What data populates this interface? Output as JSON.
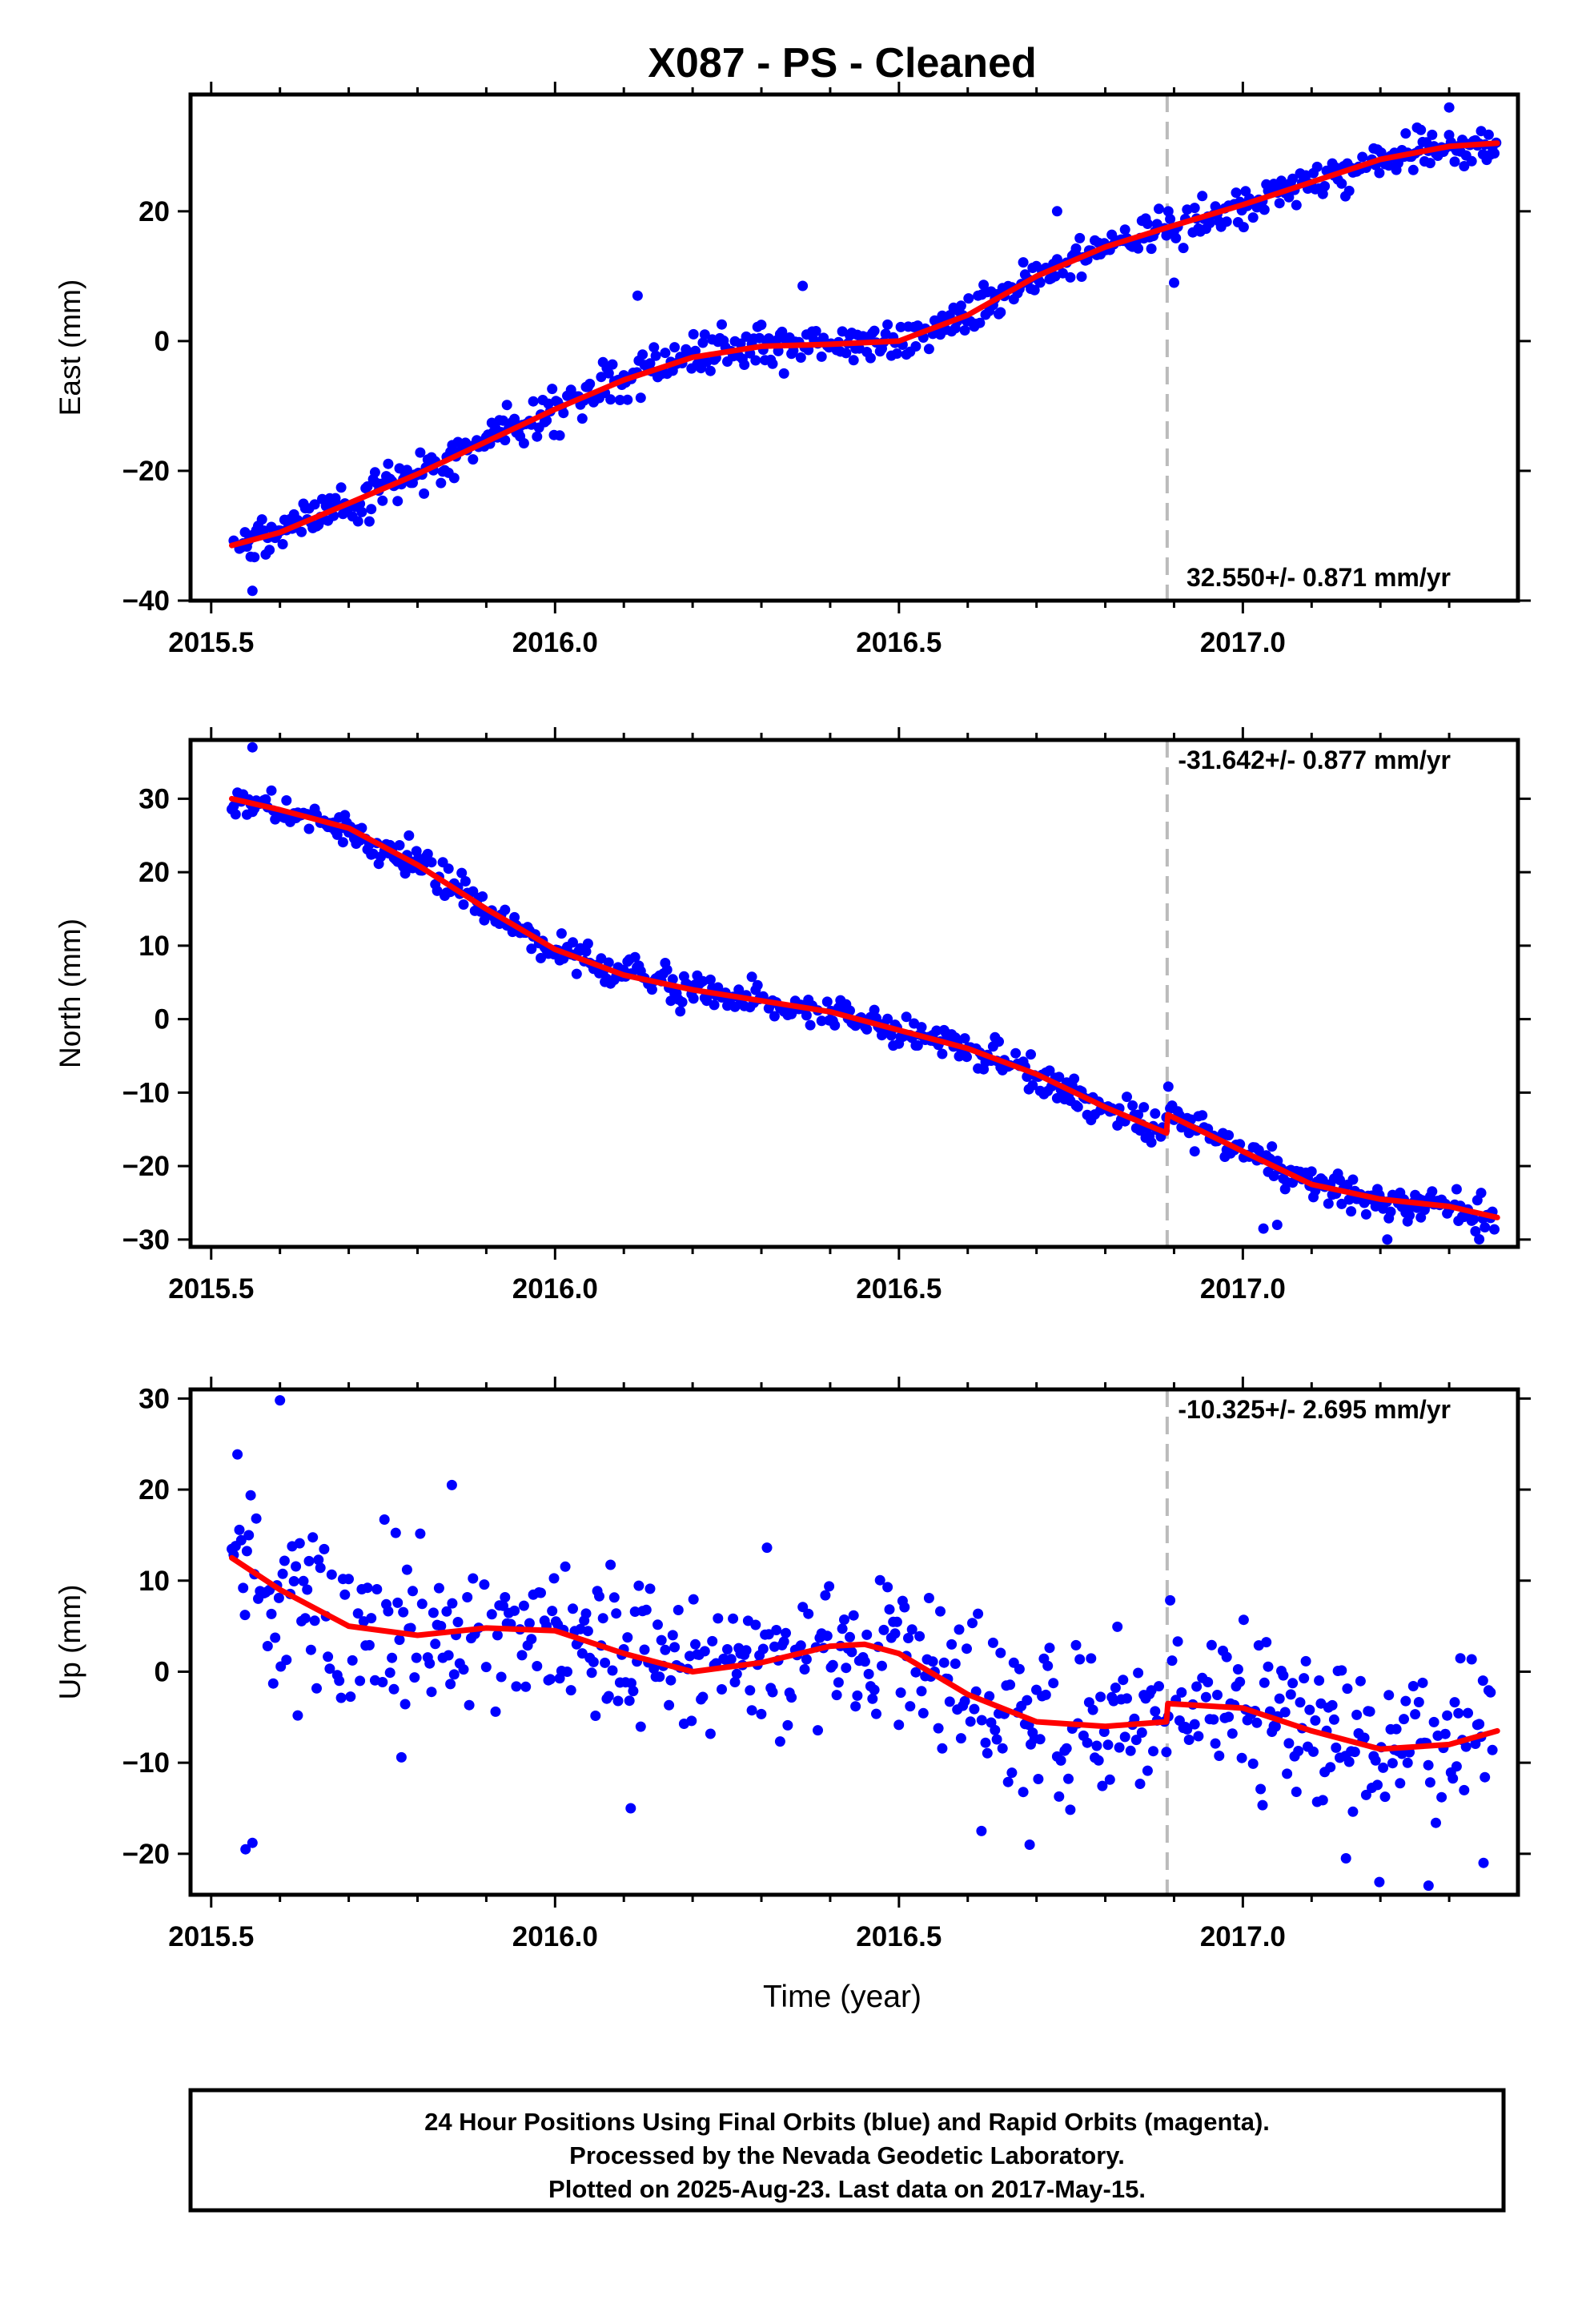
{
  "title": "X087  - PS - Cleaned",
  "xlabel": "Time (year)",
  "footer": {
    "line1": "24 Hour Positions Using Final Orbits (blue) and Rapid Orbits (magenta).",
    "line2": "Processed by the Nevada Geodetic Laboratory.",
    "line3": "Plotted on 2025-Aug-23. Last data on 2017-May-15."
  },
  "colors": {
    "points": "#0000ff",
    "fit": "#ff0000",
    "break_line": "#bbbbbb",
    "frame": "#000000"
  },
  "chart_data": [
    {
      "type": "scatter",
      "ylabel": "East (mm)",
      "xlim": [
        2015.47,
        2017.4
      ],
      "ylim": [
        -40,
        38
      ],
      "xticks": [
        {
          "v": 2015.5,
          "label": "2015.5"
        },
        {
          "v": 2016.0,
          "label": "2016.0"
        },
        {
          "v": 2016.5,
          "label": "2016.5"
        },
        {
          "v": 2017.0,
          "label": "2017.0"
        }
      ],
      "yticks": [
        {
          "v": -40,
          "label": "−40"
        },
        {
          "v": -20,
          "label": "−20"
        },
        {
          "v": 0,
          "label": "0"
        },
        {
          "v": 20,
          "label": "20"
        }
      ],
      "rate_label": "32.550+/- 0.871 mm/yr",
      "rate_position": "bottom-right",
      "break_epoch": 2016.89,
      "data_range": [
        2015.53,
        2017.37
      ],
      "fit": {
        "x": [
          2015.53,
          2015.6,
          2015.7,
          2015.8,
          2015.9,
          2016.0,
          2016.1,
          2016.2,
          2016.3,
          2016.4,
          2016.5,
          2016.6,
          2016.7,
          2016.8,
          2016.89,
          2017.0,
          2017.1,
          2017.2,
          2017.3,
          2017.37
        ],
        "y": [
          -31.5,
          -29.5,
          -25.0,
          -20.5,
          -15.5,
          -10.5,
          -6.0,
          -2.5,
          -0.8,
          -0.5,
          0.0,
          4.0,
          10.0,
          14.5,
          17.5,
          21.0,
          24.5,
          28.0,
          30.0,
          30.5
        ]
      },
      "noise": 1.5,
      "outliers": [
        [
          2015.56,
          -38.5
        ],
        [
          2016.12,
          7.0
        ],
        [
          2016.36,
          8.5
        ],
        [
          2016.9,
          9.0
        ],
        [
          2016.73,
          20.0
        ],
        [
          2017.3,
          36.0
        ]
      ]
    },
    {
      "type": "scatter",
      "ylabel": "North (mm)",
      "xlim": [
        2015.47,
        2017.4
      ],
      "ylim": [
        -31,
        38
      ],
      "xticks": [
        {
          "v": 2015.5,
          "label": "2015.5"
        },
        {
          "v": 2016.0,
          "label": "2016.0"
        },
        {
          "v": 2016.5,
          "label": "2016.5"
        },
        {
          "v": 2017.0,
          "label": "2017.0"
        }
      ],
      "yticks": [
        {
          "v": -30,
          "label": "−30"
        },
        {
          "v": -20,
          "label": "−20"
        },
        {
          "v": -10,
          "label": "−10"
        },
        {
          "v": 0,
          "label": "0"
        },
        {
          "v": 10,
          "label": "10"
        },
        {
          "v": 20,
          "label": "20"
        },
        {
          "v": 30,
          "label": "30"
        }
      ],
      "rate_label": "-31.642+/- 0.877 mm/yr",
      "rate_position": "top-right",
      "break_epoch": 2016.89,
      "data_range": [
        2015.53,
        2017.37
      ],
      "fit": {
        "x": [
          2015.53,
          2015.6,
          2015.7,
          2015.8,
          2015.9,
          2016.0,
          2016.1,
          2016.2,
          2016.3,
          2016.4,
          2016.5,
          2016.6,
          2016.7,
          2016.8,
          2016.889,
          2016.891,
          2017.0,
          2017.1,
          2017.2,
          2017.3,
          2017.37
        ],
        "y": [
          30.0,
          28.5,
          26.0,
          21.0,
          15.0,
          9.5,
          6.0,
          4.0,
          2.5,
          1.0,
          -1.5,
          -4.0,
          -7.5,
          -12.0,
          -15.5,
          -13.0,
          -18.0,
          -22.5,
          -24.5,
          -25.5,
          -27.0
        ]
      },
      "noise": 1.2,
      "outliers": [
        [
          2015.56,
          37.0
        ],
        [
          2017.03,
          -28.5
        ],
        [
          2017.05,
          -28.0
        ],
        [
          2017.21,
          -30.0
        ]
      ]
    },
    {
      "type": "scatter",
      "ylabel": "Up (mm)",
      "xlim": [
        2015.47,
        2017.4
      ],
      "ylim": [
        -24.5,
        31
      ],
      "xticks": [
        {
          "v": 2015.5,
          "label": "2015.5"
        },
        {
          "v": 2016.0,
          "label": "2016.0"
        },
        {
          "v": 2016.5,
          "label": "2016.5"
        },
        {
          "v": 2017.0,
          "label": "2017.0"
        }
      ],
      "yticks": [
        {
          "v": -20,
          "label": "−20"
        },
        {
          "v": -10,
          "label": "−10"
        },
        {
          "v": 0,
          "label": "0"
        },
        {
          "v": 10,
          "label": "10"
        },
        {
          "v": 20,
          "label": "20"
        },
        {
          "v": 30,
          "label": "30"
        }
      ],
      "rate_label": "-10.325+/- 2.695 mm/yr",
      "rate_position": "top-right",
      "break_epoch": 2016.89,
      "data_range": [
        2015.53,
        2017.37
      ],
      "fit": {
        "x": [
          2015.53,
          2015.6,
          2015.7,
          2015.8,
          2015.9,
          2016.0,
          2016.1,
          2016.2,
          2016.3,
          2016.4,
          2016.45,
          2016.5,
          2016.6,
          2016.7,
          2016.8,
          2016.889,
          2016.891,
          2017.0,
          2017.1,
          2017.2,
          2017.3,
          2017.37
        ],
        "y": [
          12.5,
          9.0,
          5.0,
          4.0,
          4.8,
          4.5,
          2.0,
          0.0,
          1.0,
          2.8,
          3.0,
          2.0,
          -2.5,
          -5.5,
          -6.0,
          -5.5,
          -3.5,
          -4.0,
          -6.5,
          -8.5,
          -8.0,
          -6.5
        ]
      },
      "noise": 4.5,
      "outliers": [
        [
          2015.6,
          29.8
        ],
        [
          2015.85,
          20.5
        ],
        [
          2015.55,
          -19.5
        ],
        [
          2015.56,
          -18.8
        ],
        [
          2016.11,
          -15.0
        ],
        [
          2016.62,
          -17.5
        ],
        [
          2016.69,
          -19.0
        ],
        [
          2017.15,
          -20.5
        ],
        [
          2017.27,
          -23.5
        ],
        [
          2017.35,
          -21.0
        ]
      ]
    }
  ]
}
